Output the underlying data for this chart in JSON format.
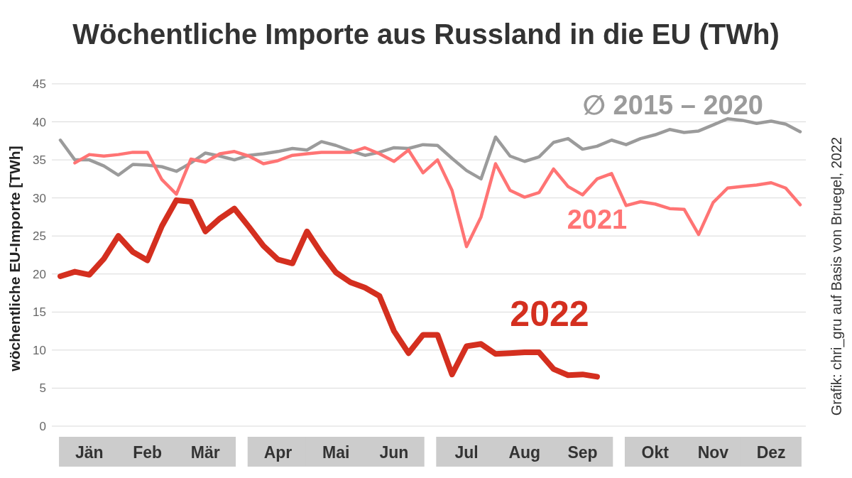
{
  "chart_data": {
    "type": "line",
    "title": "Wöchentliche Importe aus Russland in die EU (TWh)",
    "ylabel": "wöchentliche EU-Importe [TWh]",
    "annotations": [
      "Grafik: chri_gru auf Basis von Bruegel, 2022"
    ],
    "categories": [
      null,
      null,
      "Jän",
      null,
      null,
      null,
      "Feb",
      null,
      null,
      null,
      "Mär",
      null,
      null,
      null,
      null,
      "Apr",
      null,
      null,
      null,
      "Mai",
      null,
      null,
      null,
      "Jun",
      null,
      null,
      null,
      null,
      "Jul",
      null,
      null,
      null,
      "Aug",
      null,
      null,
      null,
      "Sep",
      null,
      null,
      null,
      null,
      "Okt",
      null,
      null,
      null,
      "Nov",
      null,
      null,
      null,
      "Dez",
      null,
      null
    ],
    "ylim": [
      0,
      45
    ],
    "yticks": [
      0,
      5,
      10,
      15,
      20,
      25,
      30,
      35,
      40,
      45
    ],
    "grid": "y",
    "marker": "none",
    "line_style": "solid",
    "series": [
      {
        "name": "∅ 2015 – 2020",
        "color": "#9b9b9b",
        "values": [
          37.6,
          35,
          35,
          34.2,
          33,
          34.4,
          34.3,
          34.1,
          33.5,
          34.6,
          35.9,
          35.5,
          35,
          35.6,
          35.8,
          36.1,
          36.5,
          36.3,
          37.4,
          36.9,
          36.2,
          35.6,
          36,
          36.6,
          36.5,
          37,
          36.9,
          35.2,
          33.6,
          32.5,
          38,
          35.5,
          34.8,
          35.4,
          37.3,
          37.8,
          36.4,
          36.8,
          37.6,
          37,
          37.8,
          38.3,
          39,
          38.6,
          38.8,
          39.6,
          40.4,
          40.2,
          39.8,
          40.1,
          39.7,
          38.7
        ]
      },
      {
        "name": "2021",
        "color": "#ff7474",
        "values": [
          null,
          34.6,
          35.7,
          35.5,
          35.7,
          36,
          36,
          32.4,
          30.5,
          35.1,
          34.7,
          35.8,
          36.1,
          35.5,
          34.5,
          34.9,
          35.6,
          35.8,
          36,
          36,
          36,
          36.6,
          35.8,
          34.8,
          36.3,
          33.3,
          35,
          31,
          23.6,
          27.5,
          34.5,
          31,
          30.1,
          30.7,
          33.8,
          31.5,
          30.4,
          32.5,
          33.2,
          29,
          29.5,
          29.2,
          28.6,
          28.5,
          25.2,
          29.4,
          31.3,
          31.5,
          31.7,
          32,
          31.3,
          29.1
        ]
      },
      {
        "name": "2022",
        "color": "#d42f1f",
        "values": [
          19.7,
          20.3,
          19.9,
          22,
          25,
          22.9,
          21.8,
          26.3,
          29.7,
          29.5,
          25.6,
          27.3,
          28.6,
          26.2,
          23.7,
          21.9,
          21.4,
          25.6,
          22.7,
          20.2,
          18.9,
          18.2,
          17.1,
          12.5,
          9.6,
          12,
          12,
          6.8,
          10.5,
          10.8,
          9.5,
          9.6,
          9.7,
          9.7,
          7.5,
          6.7,
          6.8,
          6.5,
          null,
          null,
          null,
          null,
          null,
          null,
          null,
          null,
          null,
          null,
          null,
          null,
          null,
          null
        ]
      }
    ]
  }
}
